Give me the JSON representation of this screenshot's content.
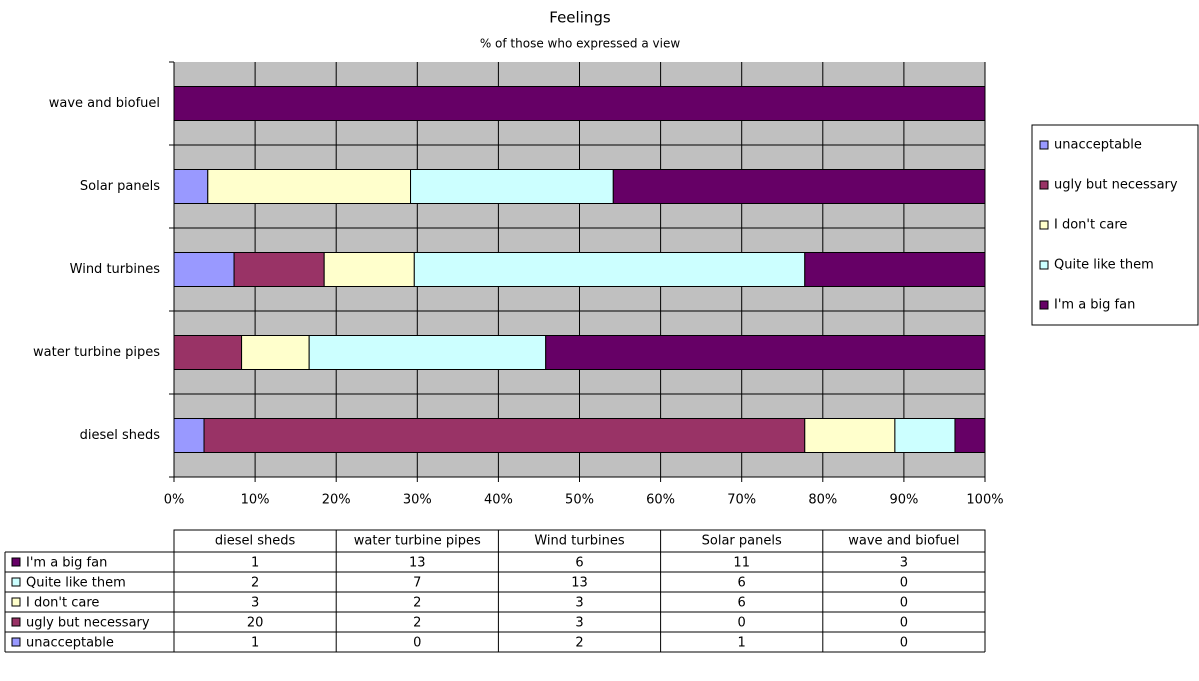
{
  "chart_data": {
    "type": "bar",
    "orientation": "horizontal",
    "stacked": "percent",
    "title": "Feelings",
    "subtitle": "% of those who expressed a view",
    "categories": [
      "diesel sheds",
      "water turbine pipes",
      "Wind turbines",
      "Solar panels",
      "wave and biofuel"
    ],
    "series": [
      {
        "name": "unacceptable",
        "color": "#9999ff",
        "values": [
          1,
          0,
          2,
          1,
          0
        ]
      },
      {
        "name": "ugly but necessary",
        "color": "#993366",
        "values": [
          20,
          2,
          3,
          0,
          0
        ]
      },
      {
        "name": "I don't care",
        "color": "#ffffcc",
        "values": [
          3,
          2,
          3,
          6,
          0
        ]
      },
      {
        "name": "Quite like them",
        "color": "#ccffff",
        "values": [
          2,
          7,
          13,
          6,
          0
        ]
      },
      {
        "name": "I'm a big fan",
        "color": "#660066",
        "values": [
          1,
          13,
          6,
          11,
          3
        ]
      }
    ],
    "xlim": [
      0,
      100
    ],
    "xticks": [
      {
        "value": 0,
        "label": "0%"
      },
      {
        "value": 10,
        "label": "10%"
      },
      {
        "value": 20,
        "label": "20%"
      },
      {
        "value": 30,
        "label": "30%"
      },
      {
        "value": 40,
        "label": "40%"
      },
      {
        "value": 50,
        "label": "50%"
      },
      {
        "value": 60,
        "label": "60%"
      },
      {
        "value": 70,
        "label": "70%"
      },
      {
        "value": 80,
        "label": "80%"
      },
      {
        "value": 90,
        "label": "90%"
      },
      {
        "value": 100,
        "label": "100%"
      }
    ],
    "grid": true,
    "plot_background": "#c0c0c0",
    "legend": "right",
    "data_table": true
  }
}
